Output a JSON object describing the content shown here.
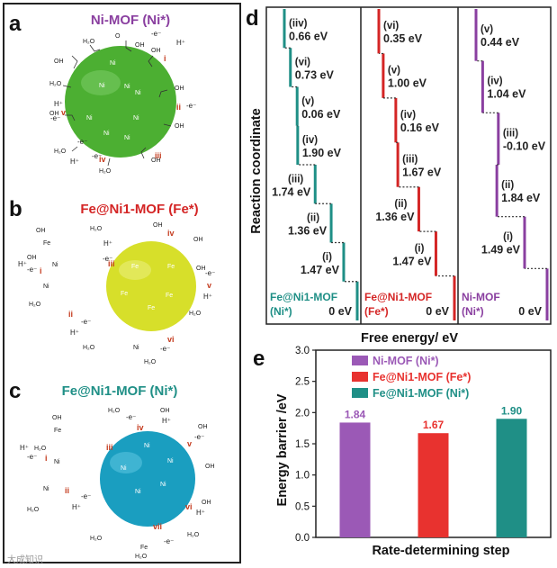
{
  "panel_labels": {
    "a": "a",
    "b": "b",
    "c": "c",
    "d": "d",
    "e": "e"
  },
  "schemes": {
    "a": {
      "title": "Ni-MOF (Ni*)",
      "color": "#8a3fa0",
      "ball": "#4caf32",
      "steps": [
        "i",
        "ii",
        "iii",
        "iv",
        "v"
      ],
      "ions": [
        "Ni+III",
        "Ni+II",
        "Ni+III",
        "Ni+II",
        "Ni+III",
        "Ni+IV",
        "Ni+III",
        "Ni+II"
      ]
    },
    "b": {
      "title": "Fe@Ni1-MOF (Fe*)",
      "color": "#d42525",
      "ball": "#d7df2a",
      "steps": [
        "i",
        "ii",
        "iii",
        "iv",
        "v",
        "vi"
      ],
      "ions": [
        "Fe+V",
        "Fe+IV",
        "Fe+III",
        "Fe+IV",
        "Fe+IV"
      ]
    },
    "c": {
      "title": "Fe@Ni1-MOF (Ni*)",
      "color": "#1f8f86",
      "ball": "#1a9ec0",
      "steps": [
        "i",
        "ii",
        "iii",
        "iv",
        "v",
        "vi",
        "vii"
      ],
      "ions": [
        "Ni+IV",
        "Ni+IV",
        "Ni+III",
        "Ni+III",
        "Ni+II"
      ]
    }
  },
  "chart_data": [
    {
      "type": "line",
      "title": "",
      "xlabel": "Free energy/ eV",
      "ylabel": "Reaction coordinate",
      "series": [
        {
          "name": "Fe@Ni1-MOF (Ni*)",
          "color": "#1f8f86",
          "start": "0 eV",
          "steps": [
            {
              "step": "(i)",
              "energy": 1.47,
              "label": "1.47 eV"
            },
            {
              "step": "(ii)",
              "energy": 1.36,
              "label": "1.36 eV"
            },
            {
              "step": "(iii)",
              "energy": 1.74,
              "label": "1.74 eV"
            },
            {
              "step": "(iv)",
              "energy": 1.9,
              "label": "1.90 eV"
            },
            {
              "step": "(v)",
              "energy": 0.06,
              "label": "0.06 eV"
            },
            {
              "step": "(vi)",
              "energy": 0.73,
              "label": "0.73 eV"
            },
            {
              "step": "(iiv)",
              "energy": 0.66,
              "label": "0.66 eV"
            }
          ]
        },
        {
          "name": "Fe@Ni1-MOF (Fe*)",
          "color": "#d42525",
          "start": "0 eV",
          "steps": [
            {
              "step": "(i)",
              "energy": 1.47,
              "label": "1.47 eV"
            },
            {
              "step": "(ii)",
              "energy": 1.36,
              "label": "1.36 eV"
            },
            {
              "step": "(iii)",
              "energy": 1.67,
              "label": "1.67 eV"
            },
            {
              "step": "(iv)",
              "energy": 0.16,
              "label": "0.16 eV"
            },
            {
              "step": "(v)",
              "energy": 1.0,
              "label": "1.00 eV"
            },
            {
              "step": "(vi)",
              "energy": 0.35,
              "label": "0.35 eV"
            }
          ]
        },
        {
          "name": "Ni-MOF (Ni*)",
          "color": "#8a3fa0",
          "start": "0 eV",
          "steps": [
            {
              "step": "(i)",
              "energy": 1.49,
              "label": "1.49 eV"
            },
            {
              "step": "(ii)",
              "energy": 1.84,
              "label": "1.84 eV"
            },
            {
              "step": "(iii)",
              "energy": -0.1,
              "label": "-0.10 eV"
            },
            {
              "step": "(iv)",
              "energy": 1.04,
              "label": "1.04 eV"
            },
            {
              "step": "(v)",
              "energy": 0.44,
              "label": "0.44 eV"
            }
          ]
        }
      ],
      "panel_names": [
        [
          "Fe@Ni1-MOF",
          "(Ni*)"
        ],
        [
          "Fe@Ni1-MOF",
          "(Fe*)"
        ],
        [
          "Ni-MOF",
          "(Ni*)"
        ]
      ]
    },
    {
      "type": "bar",
      "title": "",
      "xlabel": "Rate-determining step",
      "ylabel": "Energy barrier /eV",
      "ylim": [
        0.0,
        3.0
      ],
      "yticks": [
        "0.0",
        "0.5",
        "1.0",
        "1.5",
        "2.0",
        "2.5",
        "3.0"
      ],
      "legend_position": "top-left",
      "categories": [
        "Ni-MOF (Ni*)",
        "Fe@Ni1-MOF (Fe*)",
        "Fe@Ni1-MOF (Ni*)"
      ],
      "values": [
        1.84,
        1.67,
        1.9
      ],
      "value_labels": [
        "1.84",
        "1.67",
        "1.90"
      ],
      "colors": [
        "#9b59b6",
        "#e8322f",
        "#1f8f86"
      ]
    }
  ],
  "watermark": "大成知识"
}
